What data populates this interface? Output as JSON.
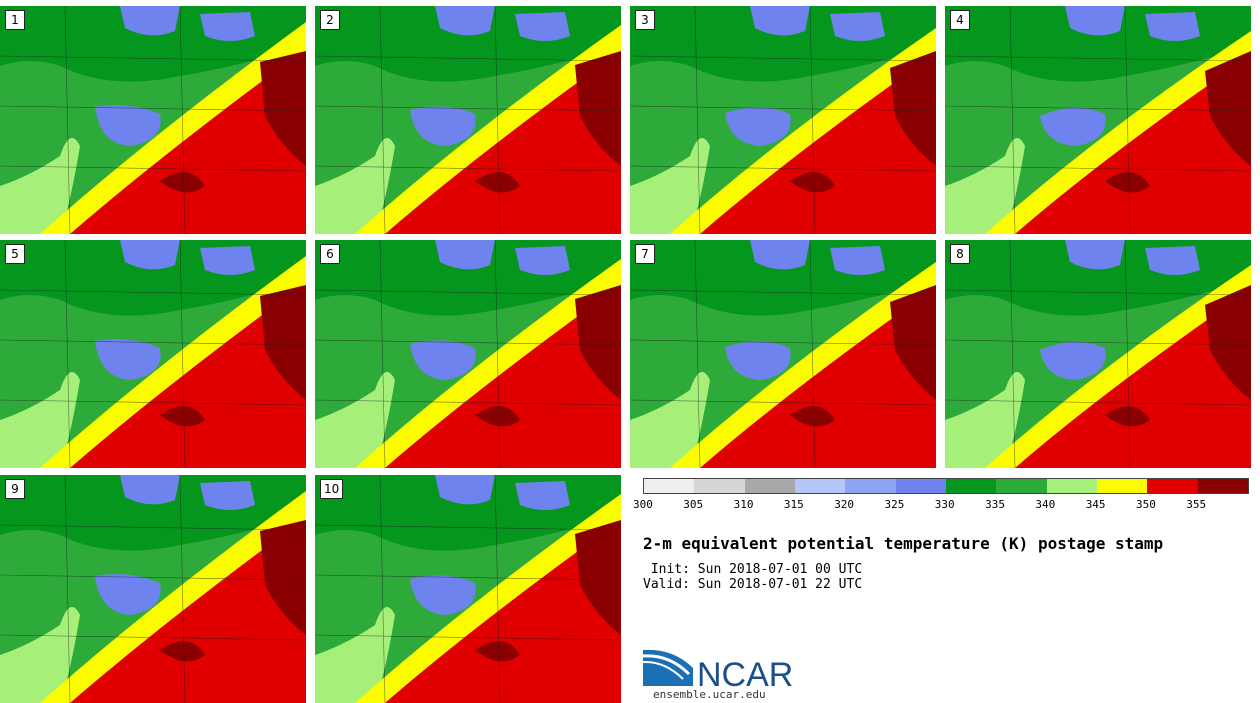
{
  "stamps": [
    {
      "label": "1"
    },
    {
      "label": "2"
    },
    {
      "label": "3"
    },
    {
      "label": "4"
    },
    {
      "label": "5"
    },
    {
      "label": "6"
    },
    {
      "label": "7"
    },
    {
      "label": "8"
    },
    {
      "label": "9"
    },
    {
      "label": "10"
    }
  ],
  "legend": {
    "colors": [
      "#eeeeee",
      "#d6d6d6",
      "#a9a9a9",
      "#b6c6fb",
      "#8fa3f3",
      "#6e83ee",
      "#05961e",
      "#2eaa3a",
      "#a6f07a",
      "#fcfc00",
      "#e00000",
      "#8a0000"
    ],
    "tick_labels": [
      "300",
      "305",
      "310",
      "315",
      "320",
      "325",
      "330",
      "335",
      "340",
      "345",
      "350",
      "355"
    ]
  },
  "map_colors": {
    "cold": "#6e83ee",
    "dark_green": "#05961e",
    "green": "#2eaa3a",
    "light_green": "#a6f07a",
    "yellow": "#fcfc00",
    "red": "#e00000",
    "dark_red": "#8a0000"
  },
  "title": "2-m equivalent potential temperature (K) postage stamp",
  "init_line": " Init: Sun 2018-07-01 00 UTC",
  "valid_line": "Valid: Sun 2018-07-01 22 UTC",
  "logo": {
    "text": "NCAR",
    "url": "ensemble.ucar.edu"
  }
}
